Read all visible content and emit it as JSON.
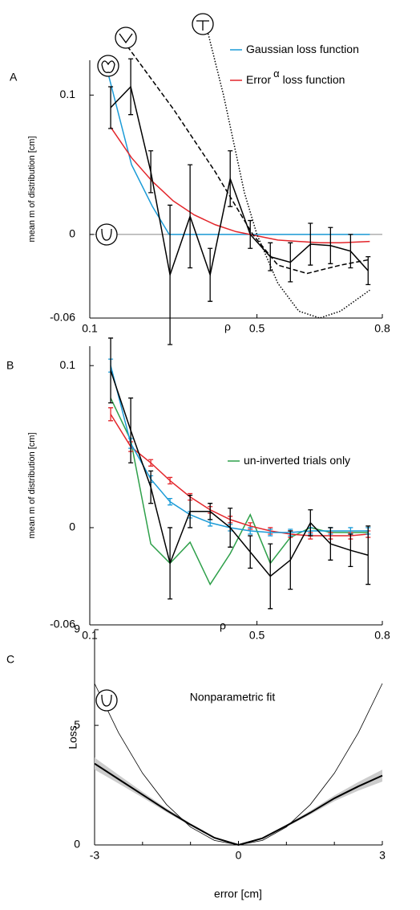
{
  "chart_data": [
    {
      "type": "line",
      "panel": "A",
      "ylabel": "mean m of distribution [cm]",
      "xlabel": "ρ",
      "xlim": [
        0.1,
        0.8
      ],
      "ylim": [
        -0.06,
        0.125
      ],
      "xticks": [
        0.1,
        0.5,
        0.8
      ],
      "yticks": [
        -0.06,
        0,
        0.1
      ],
      "reference_line": 0,
      "series": [
        {
          "name": "Gaussian loss function",
          "color": "#1b9bd7",
          "x": [
            0.14,
            0.2,
            0.25,
            0.29,
            0.5,
            0.77
          ],
          "values": [
            0.12,
            0.05,
            0.02,
            0,
            0,
            0
          ]
        },
        {
          "name": "Error",
          "name_superscript": "α",
          "name_rest": "loss function",
          "color": "#e3262b",
          "x": [
            0.15,
            0.2,
            0.25,
            0.3,
            0.35,
            0.4,
            0.45,
            0.5,
            0.55,
            0.6,
            0.65,
            0.7,
            0.77
          ],
          "values": [
            0.077,
            0.055,
            0.038,
            0.024,
            0.014,
            0.007,
            0.002,
            -0.001,
            -0.004,
            -0.005,
            -0.006,
            -0.006,
            -0.005
          ]
        },
        {
          "color": "#000000",
          "style": "dashed",
          "x": [
            0.19,
            0.3,
            0.4,
            0.49,
            0.55,
            0.62,
            0.7,
            0.77
          ],
          "values": [
            0.135,
            0.09,
            0.045,
            0,
            -0.022,
            -0.028,
            -0.022,
            -0.018
          ]
        },
        {
          "color": "#000000",
          "style": "dotted",
          "x": [
            0.38,
            0.42,
            0.47,
            0.5,
            0.55,
            0.6,
            0.65,
            0.7,
            0.77
          ],
          "values": [
            0.148,
            0.1,
            0.03,
            0,
            -0.035,
            -0.055,
            -0.06,
            -0.055,
            -0.04
          ]
        },
        {
          "color": "#000000",
          "x": [
            0.15,
            0.198,
            0.246,
            0.292,
            0.34,
            0.388,
            0.436,
            0.484,
            0.532,
            0.58,
            0.628,
            0.676,
            0.724,
            0.766
          ],
          "values": [
            0.091,
            0.106,
            0.045,
            -0.029,
            0.013,
            -0.029,
            0.04,
            0,
            -0.016,
            -0.02,
            -0.007,
            -0.008,
            -0.012,
            -0.026
          ],
          "errors": [
            0.015,
            0.02,
            0.015,
            0.05,
            0.037,
            0.019,
            0.02,
            0.01,
            0.01,
            0.014,
            0.015,
            0.013,
            0.012,
            0.01
          ]
        }
      ]
    },
    {
      "type": "line",
      "panel": "B",
      "ylabel": "mean m of distribution [cm]",
      "xlabel": "ρ",
      "xlim": [
        0.1,
        0.8
      ],
      "ylim": [
        -0.06,
        0.112
      ],
      "xticks": [
        0.1,
        0.5,
        0.8
      ],
      "yticks": [
        -0.06,
        0,
        0.1
      ],
      "series": [
        {
          "name": "un-inverted trials only",
          "color": "#2ea04a",
          "x": [
            0.15,
            0.198,
            0.246,
            0.292,
            0.34,
            0.388,
            0.436,
            0.484,
            0.532,
            0.58,
            0.628,
            0.676,
            0.724,
            0.766
          ],
          "values": [
            0.08,
            0.054,
            -0.01,
            -0.022,
            -0.009,
            -0.035,
            -0.016,
            0.008,
            -0.022,
            -0.006,
            0,
            -0.003,
            -0.003,
            -0.003
          ]
        },
        {
          "color": "#e3262b",
          "x": [
            0.15,
            0.198,
            0.246,
            0.292,
            0.34,
            0.388,
            0.436,
            0.484,
            0.532,
            0.58,
            0.628,
            0.676,
            0.724,
            0.766
          ],
          "values": [
            0.07,
            0.05,
            0.04,
            0.029,
            0.019,
            0.011,
            0.005,
            0.001,
            -0.002,
            -0.004,
            -0.005,
            -0.005,
            -0.005,
            -0.004
          ],
          "errors": [
            0.004,
            0.003,
            0.002,
            0.002,
            0.002,
            0.002,
            0.002,
            0.002,
            0.002,
            0.002,
            0.002,
            0.002,
            0.002,
            0.002
          ]
        },
        {
          "color": "#1b9bd7",
          "x": [
            0.15,
            0.198,
            0.246,
            0.292,
            0.34,
            0.388,
            0.436,
            0.484,
            0.532,
            0.58,
            0.628,
            0.676,
            0.724,
            0.766
          ],
          "values": [
            0.1,
            0.052,
            0.03,
            0.016,
            0.008,
            0.003,
            0,
            -0.002,
            -0.003,
            -0.003,
            -0.002,
            -0.002,
            -0.002,
            -0.002
          ],
          "errors": [
            0.004,
            0.003,
            0.002,
            0.002,
            0.002,
            0.002,
            0.002,
            0.002,
            0.002,
            0.002,
            0.002,
            0.002,
            0.002,
            0.002
          ]
        },
        {
          "color": "#000000",
          "x": [
            0.15,
            0.198,
            0.246,
            0.292,
            0.34,
            0.388,
            0.436,
            0.484,
            0.532,
            0.58,
            0.628,
            0.676,
            0.724,
            0.766
          ],
          "values": [
            0.097,
            0.06,
            0.025,
            -0.022,
            0.01,
            0.01,
            0,
            -0.015,
            -0.03,
            -0.02,
            0.003,
            -0.01,
            -0.014,
            -0.017
          ],
          "errors": [
            0.02,
            0.02,
            0.01,
            0.022,
            0.01,
            0.005,
            0.012,
            0.01,
            0.02,
            0.018,
            0.008,
            0.01,
            0.01,
            0.018
          ]
        }
      ]
    },
    {
      "type": "line",
      "panel": "C",
      "title": "Nonparametric fit",
      "ylabel": "Loss",
      "xlabel": "error [cm]",
      "xlim": [
        -3,
        3
      ],
      "ylim": [
        0,
        9
      ],
      "xticks": [
        -3,
        0,
        3
      ],
      "xminor": [
        -2,
        -1,
        1,
        2
      ],
      "yticks": [
        0,
        5,
        9
      ],
      "band": {
        "color": "#cccccc",
        "x": [
          -3,
          -2.5,
          -2,
          -1.5,
          -1,
          -0.5,
          0,
          0.5,
          1,
          1.5,
          2,
          2.5,
          3
        ],
        "lower": [
          3.15,
          2.57,
          1.98,
          1.37,
          0.8,
          0.27,
          0,
          0.25,
          0.75,
          1.27,
          1.83,
          2.27,
          2.65
        ],
        "upper": [
          3.65,
          2.93,
          2.22,
          1.53,
          0.9,
          0.33,
          0.02,
          0.31,
          0.85,
          1.43,
          2.07,
          2.63,
          3.15
        ]
      },
      "series": [
        {
          "color": "#000000",
          "width": 0.8,
          "x": [
            -3,
            -2.5,
            -2,
            -1.5,
            -1,
            -0.5,
            0,
            0.5,
            1,
            1.5,
            2,
            2.5,
            3
          ],
          "values": [
            6.75,
            4.69,
            3,
            1.69,
            0.75,
            0.19,
            0,
            0.19,
            0.75,
            1.69,
            3,
            4.69,
            6.75
          ]
        },
        {
          "color": "#000000",
          "width": 2,
          "x": [
            -3,
            -2.5,
            -2,
            -1.5,
            -1,
            -0.5,
            0,
            0.5,
            1,
            1.5,
            2,
            2.5,
            3
          ],
          "values": [
            3.4,
            2.75,
            2.1,
            1.45,
            0.85,
            0.3,
            0,
            0.28,
            0.8,
            1.35,
            1.95,
            2.45,
            2.9
          ]
        }
      ]
    }
  ]
}
